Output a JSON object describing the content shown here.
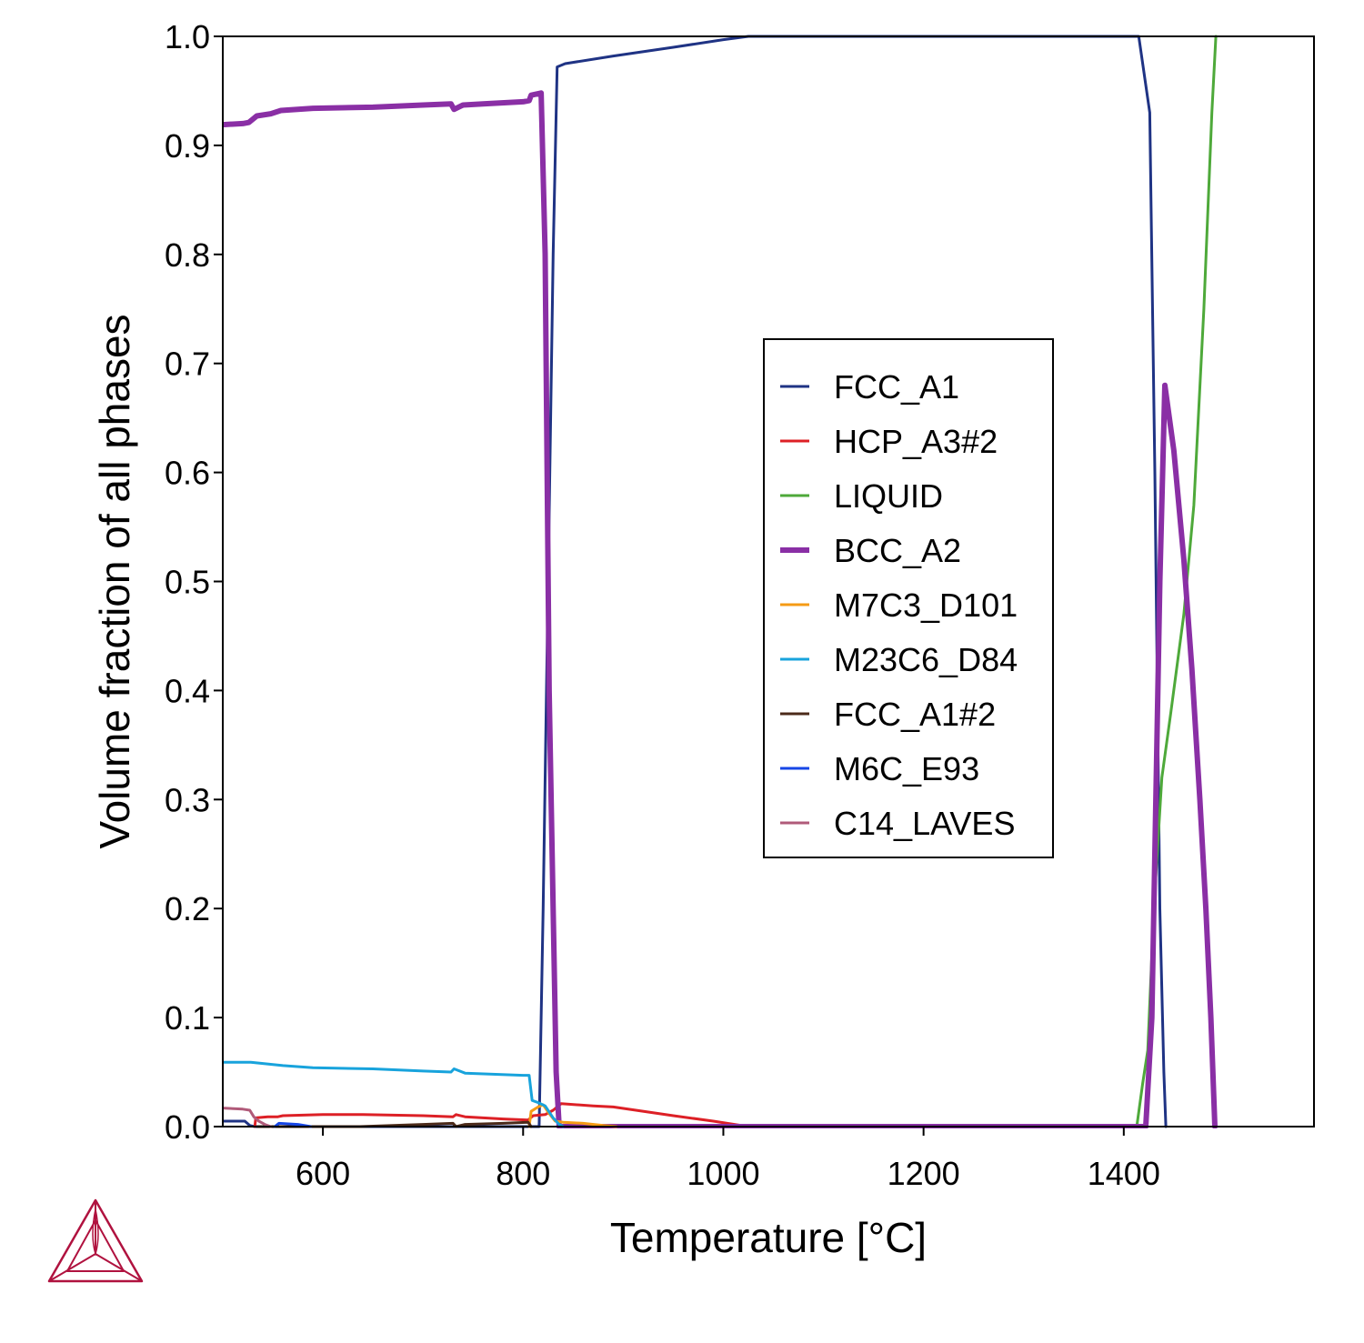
{
  "chart_data": {
    "type": "line",
    "title": "",
    "xlabel": "Temperature [°C]",
    "ylabel": "Volume fraction of all phases",
    "xlim": [
      500,
      1590
    ],
    "ylim": [
      0,
      1.0
    ],
    "xticks": [
      600,
      800,
      1000,
      1200,
      1400
    ],
    "xtick_labels": [
      "600",
      "800",
      "1000",
      "1200",
      "1400"
    ],
    "yticks": [
      0,
      0.1,
      0.2,
      0.3,
      0.4,
      0.5,
      0.6,
      0.7,
      0.8,
      0.9,
      1.0
    ],
    "ytick_labels": [
      "0.0",
      "0.1",
      "0.2",
      "0.3",
      "0.4",
      "0.5",
      "0.6",
      "0.7",
      "0.8",
      "0.9",
      "1.0"
    ],
    "grid": false,
    "legend_position": "center-right",
    "series": [
      {
        "name": "FCC_A1",
        "color": "#1f3384",
        "line_width": 3,
        "points": [
          [
            500,
            0.005
          ],
          [
            522,
            0.005
          ],
          [
            527,
            0.001
          ],
          [
            532,
            0
          ],
          [
            816,
            0
          ],
          [
            820,
            0.2
          ],
          [
            830,
            0.8
          ],
          [
            834,
            0.972
          ],
          [
            842,
            0.975
          ],
          [
            890,
            0.982
          ],
          [
            950,
            0.99
          ],
          [
            1000,
            0.997
          ],
          [
            1025,
            1.0
          ],
          [
            1415,
            1.0
          ],
          [
            1426,
            0.93
          ],
          [
            1431,
            0.6
          ],
          [
            1436,
            0.2
          ],
          [
            1440,
            0.05
          ],
          [
            1442,
            0
          ]
        ]
      },
      {
        "name": "HCP_A3#2",
        "color": "#dd2026",
        "line_width": 3,
        "points": [
          [
            532,
            0
          ],
          [
            533,
            0.008
          ],
          [
            545,
            0.009
          ],
          [
            555,
            0.009
          ],
          [
            560,
            0.01
          ],
          [
            600,
            0.011
          ],
          [
            640,
            0.011
          ],
          [
            700,
            0.01
          ],
          [
            730,
            0.009
          ],
          [
            733,
            0.011
          ],
          [
            742,
            0.009
          ],
          [
            780,
            0.007
          ],
          [
            805,
            0.006
          ],
          [
            810,
            0.01
          ],
          [
            822,
            0.011
          ],
          [
            830,
            0.015
          ],
          [
            838,
            0.021
          ],
          [
            870,
            0.019
          ],
          [
            890,
            0.018
          ],
          [
            950,
            0.01
          ],
          [
            990,
            0.005
          ],
          [
            1025,
            0
          ]
        ]
      },
      {
        "name": "LIQUID",
        "color": "#4ea93a",
        "line_width": 3,
        "points": [
          [
            1413,
            0
          ],
          [
            1419,
            0.04
          ],
          [
            1424,
            0.07
          ],
          [
            1430,
            0.2
          ],
          [
            1438,
            0.32
          ],
          [
            1447,
            0.38
          ],
          [
            1460,
            0.47
          ],
          [
            1470,
            0.57
          ],
          [
            1480,
            0.75
          ],
          [
            1488,
            0.93
          ],
          [
            1492,
            1.0
          ]
        ]
      },
      {
        "name": "BCC_A2",
        "color": "#8a2fa5",
        "line_width": 6,
        "points": [
          [
            500,
            0.919
          ],
          [
            520,
            0.92
          ],
          [
            526,
            0.921
          ],
          [
            534,
            0.927
          ],
          [
            548,
            0.929
          ],
          [
            558,
            0.932
          ],
          [
            590,
            0.934
          ],
          [
            650,
            0.935
          ],
          [
            700,
            0.937
          ],
          [
            728,
            0.938
          ],
          [
            731,
            0.933
          ],
          [
            740,
            0.937
          ],
          [
            760,
            0.938
          ],
          [
            800,
            0.94
          ],
          [
            806,
            0.941
          ],
          [
            808,
            0.946
          ],
          [
            818,
            0.948
          ],
          [
            822,
            0.8
          ],
          [
            826,
            0.4
          ],
          [
            833,
            0.05
          ],
          [
            836,
            0
          ],
          [
            1422,
            0
          ],
          [
            1428,
            0.1
          ],
          [
            1433,
            0.35
          ],
          [
            1436,
            0.5
          ],
          [
            1441,
            0.68
          ],
          [
            1450,
            0.62
          ],
          [
            1460,
            0.52
          ],
          [
            1468,
            0.42
          ],
          [
            1476,
            0.3
          ],
          [
            1482,
            0.2
          ],
          [
            1487,
            0.1
          ],
          [
            1491,
            0
          ]
        ]
      },
      {
        "name": "M7C3_D101",
        "color": "#f59b14",
        "line_width": 3,
        "points": [
          [
            806,
            0
          ],
          [
            808,
            0.014
          ],
          [
            815,
            0.018
          ],
          [
            820,
            0.02
          ],
          [
            826,
            0.012
          ],
          [
            832,
            0.005
          ],
          [
            840,
            0.004
          ],
          [
            860,
            0.003
          ],
          [
            880,
            0.001
          ],
          [
            893,
            0
          ]
        ]
      },
      {
        "name": "M23C6_D84",
        "color": "#18a3dc",
        "line_width": 3,
        "points": [
          [
            500,
            0.059
          ],
          [
            528,
            0.059
          ],
          [
            560,
            0.056
          ],
          [
            590,
            0.054
          ],
          [
            650,
            0.053
          ],
          [
            700,
            0.051
          ],
          [
            728,
            0.05
          ],
          [
            731,
            0.053
          ],
          [
            742,
            0.049
          ],
          [
            800,
            0.047
          ],
          [
            806,
            0.047
          ],
          [
            809,
            0.024
          ],
          [
            815,
            0.022
          ],
          [
            822,
            0.019
          ],
          [
            830,
            0.008
          ],
          [
            836,
            0.002
          ],
          [
            840,
            0
          ]
        ]
      },
      {
        "name": "FCC_A1#2",
        "color": "#4b2a1a",
        "line_width": 3,
        "points": [
          [
            535,
            0
          ],
          [
            637,
            0
          ],
          [
            670,
            0.001
          ],
          [
            700,
            0.002
          ],
          [
            730,
            0.003
          ],
          [
            733,
            0
          ],
          [
            742,
            0.002
          ],
          [
            780,
            0.003
          ],
          [
            805,
            0.004
          ],
          [
            808,
            0
          ]
        ]
      },
      {
        "name": "M6C_E93",
        "color": "#1646e6",
        "line_width": 3,
        "points": [
          [
            552,
            0
          ],
          [
            556,
            0.003
          ],
          [
            575,
            0.002
          ],
          [
            588,
            0
          ]
        ]
      },
      {
        "name": "C14_LAVES",
        "color": "#b05a79",
        "line_width": 3,
        "points": [
          [
            500,
            0.017
          ],
          [
            520,
            0.016
          ],
          [
            527,
            0.015
          ],
          [
            531,
            0.009
          ],
          [
            536,
            0.005
          ],
          [
            542,
            0.002
          ],
          [
            548,
            0
          ]
        ]
      }
    ]
  }
}
